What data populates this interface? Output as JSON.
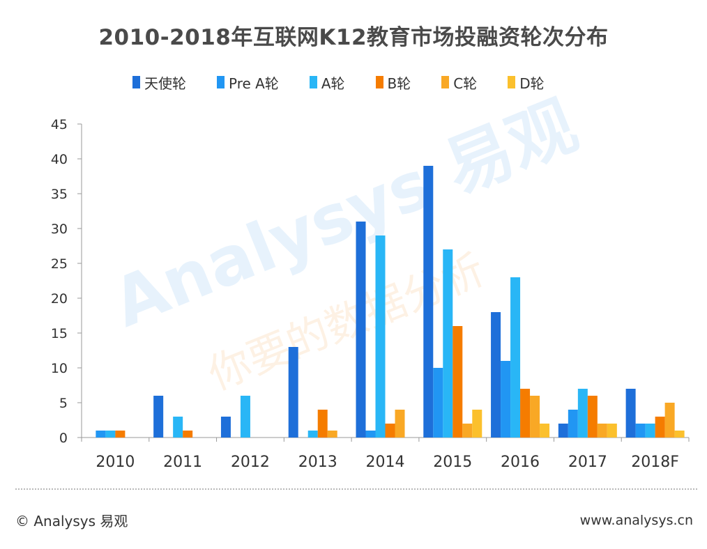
{
  "chart_data": {
    "type": "bar",
    "title": "2010-2018年互联网K12教育市场投融资轮次分布",
    "categories": [
      "2010",
      "2011",
      "2012",
      "2013",
      "2014",
      "2015",
      "2016",
      "2017",
      "2018F"
    ],
    "series": [
      {
        "name": "天使轮",
        "color": "#1e6fd9",
        "values": [
          0,
          6,
          3,
          13,
          31,
          39,
          18,
          2,
          7
        ]
      },
      {
        "name": "Pre A轮",
        "color": "#2196f3",
        "values": [
          1,
          0,
          0,
          0,
          1,
          10,
          11,
          4,
          2
        ]
      },
      {
        "name": "A轮",
        "color": "#29b6f6",
        "values": [
          1,
          3,
          6,
          1,
          29,
          27,
          23,
          7,
          2
        ]
      },
      {
        "name": "B轮",
        "color": "#f57c00",
        "values": [
          1,
          1,
          0,
          4,
          2,
          16,
          7,
          6,
          3
        ]
      },
      {
        "name": "C轮",
        "color": "#f9a825",
        "values": [
          0,
          0,
          0,
          1,
          4,
          2,
          6,
          2,
          5
        ]
      },
      {
        "name": "D轮",
        "color": "#fbc02d",
        "values": [
          0,
          0,
          0,
          0,
          0,
          4,
          2,
          2,
          1
        ]
      }
    ],
    "yticks": [
      0,
      5,
      10,
      15,
      20,
      25,
      30,
      35,
      40,
      45
    ],
    "ylim": [
      0,
      45
    ],
    "grid": false,
    "legend_position": "top"
  },
  "watermark": {
    "main": "Analysys 易观",
    "sub": "你要的数据分析"
  },
  "footer": {
    "left": "© Analysys 易观",
    "right": "www.analysys.cn"
  }
}
